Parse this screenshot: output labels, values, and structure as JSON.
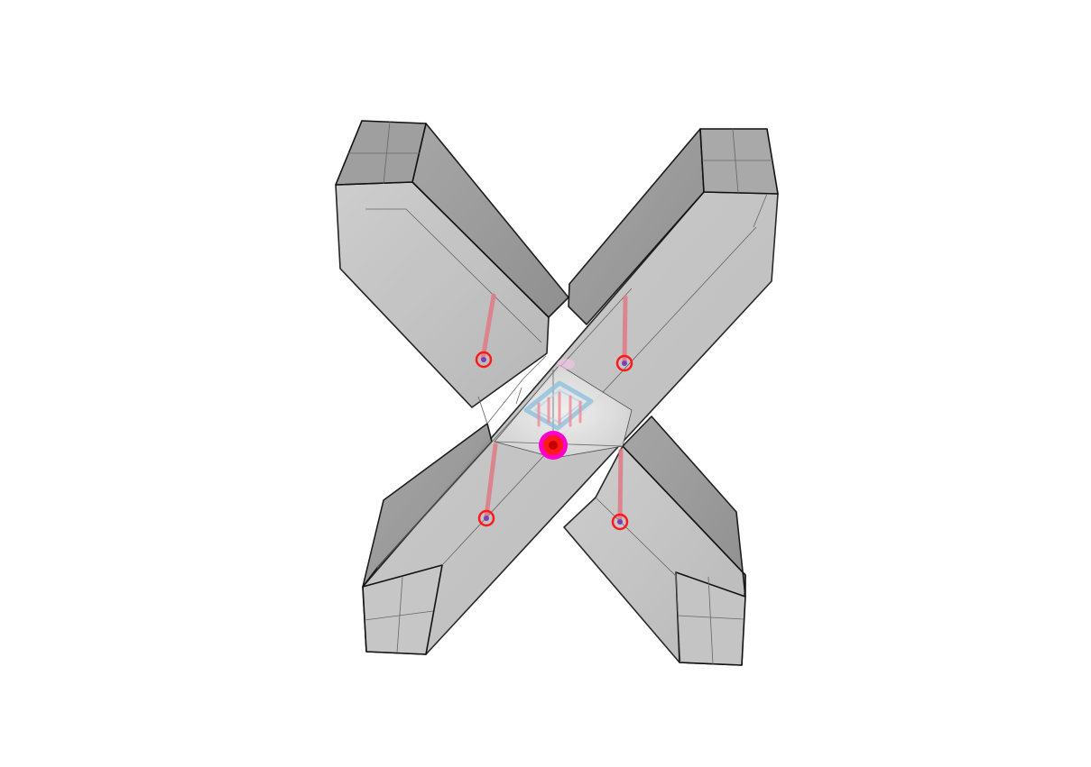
{
  "viewport": {
    "background": "#ffffff",
    "model": {
      "beam_color": "#b9b9b9",
      "beam_dark": "#8c8c8c",
      "edge_color": "#111111",
      "marker_color": "#ff1a1a",
      "highlight_color": "#ff00cc",
      "inner_part_color": "#8fc1dd"
    }
  }
}
